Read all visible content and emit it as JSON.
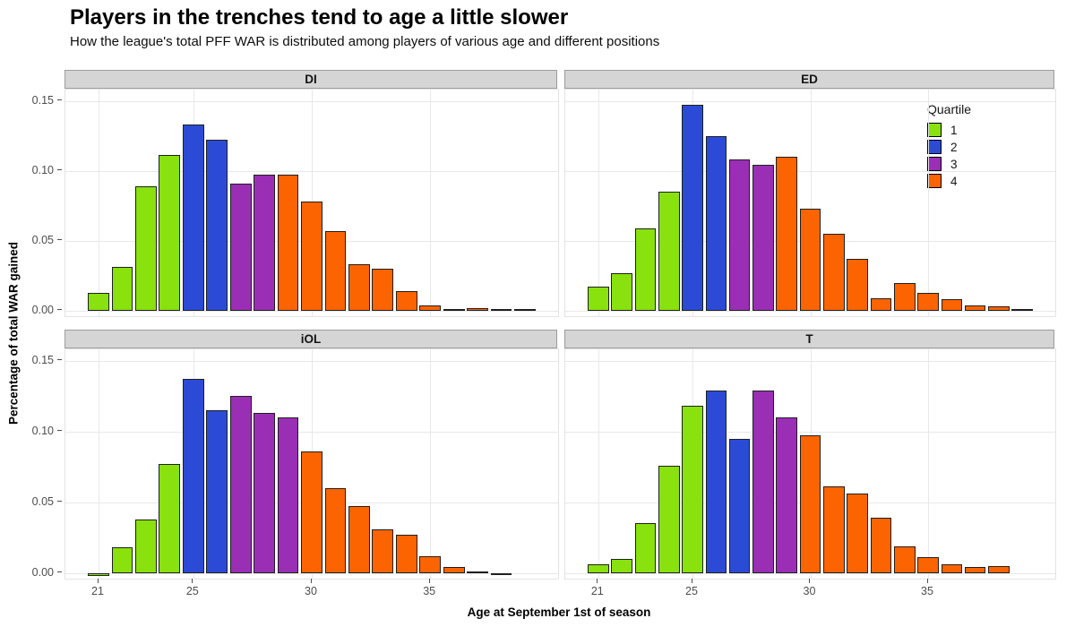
{
  "chart_data": {
    "type": "bar",
    "title": "Players in the trenches tend to age a little slower",
    "subtitle": "How the league's total PFF WAR is distributed among players of various age and different positions",
    "xlabel": "Age at September 1st of season",
    "ylabel": "Percentage of total WAR gained",
    "facet_layout": "2x2 grid, facets DI, ED, iOL, T",
    "x_ticks": [
      {
        "value": 21,
        "label": "21"
      },
      {
        "value": 25,
        "label": "25"
      },
      {
        "value": 30,
        "label": "30"
      },
      {
        "value": 35,
        "label": "35"
      }
    ],
    "y_ticks": [
      {
        "value": 0,
        "label": "0.00"
      },
      {
        "value": 0.05,
        "label": "0.05"
      },
      {
        "value": 0.1,
        "label": "0.10"
      },
      {
        "value": 0.15,
        "label": "0.15"
      }
    ],
    "x_range": [
      19.6,
      40.4
    ],
    "y_range": [
      -0.004,
      0.158
    ],
    "bar_width": 0.9,
    "grid": {
      "major_color": "#E8E8E8",
      "background": "#FFFFFF",
      "minor": "off"
    },
    "legend": {
      "title": "Quartile",
      "position": "inside top-right of ED panel",
      "entries": [
        {
          "label": "1",
          "color": "#89E10D"
        },
        {
          "label": "2",
          "color": "#2B4BD7"
        },
        {
          "label": "3",
          "color": "#9A2FB5"
        },
        {
          "label": "4",
          "color": "#FB6400"
        }
      ]
    },
    "facets": [
      {
        "label": "DI",
        "ages": [
          21,
          22,
          23,
          24,
          25,
          26,
          27,
          28,
          29,
          30,
          31,
          32,
          33,
          34,
          35,
          36,
          37,
          38,
          39
        ],
        "values": [
          0.013,
          0.031,
          0.089,
          0.111,
          0.133,
          0.122,
          0.091,
          0.097,
          0.097,
          0.078,
          0.057,
          0.033,
          0.03,
          0.014,
          0.004,
          0.001,
          0.002,
          0.001,
          0.0005
        ],
        "quartile": [
          1,
          1,
          1,
          1,
          2,
          2,
          3,
          3,
          4,
          4,
          4,
          4,
          4,
          4,
          4,
          4,
          4,
          4,
          4
        ]
      },
      {
        "label": "ED",
        "ages": [
          21,
          22,
          23,
          24,
          25,
          26,
          27,
          28,
          29,
          30,
          31,
          32,
          33,
          34,
          35,
          36,
          37,
          38,
          39
        ],
        "values": [
          0.017,
          0.027,
          0.059,
          0.085,
          0.147,
          0.125,
          0.108,
          0.104,
          0.11,
          0.073,
          0.055,
          0.037,
          0.009,
          0.02,
          0.013,
          0.008,
          0.004,
          0.003,
          0.0005
        ],
        "quartile": [
          1,
          1,
          1,
          1,
          2,
          2,
          3,
          3,
          4,
          4,
          4,
          4,
          4,
          4,
          4,
          4,
          4,
          4,
          4
        ]
      },
      {
        "label": "iOL",
        "ages": [
          21,
          22,
          23,
          24,
          25,
          26,
          27,
          28,
          29,
          30,
          31,
          32,
          33,
          34,
          35,
          36,
          37,
          38
        ],
        "values": [
          -0.002,
          0.018,
          0.038,
          0.077,
          0.137,
          0.115,
          0.125,
          0.113,
          0.11,
          0.086,
          0.06,
          0.047,
          0.031,
          0.027,
          0.012,
          0.004,
          0.0005,
          -0.001
        ],
        "quartile": [
          1,
          1,
          1,
          1,
          2,
          2,
          3,
          3,
          3,
          4,
          4,
          4,
          4,
          4,
          4,
          4,
          4,
          4
        ]
      },
      {
        "label": "T",
        "ages": [
          21,
          22,
          23,
          24,
          25,
          26,
          27,
          28,
          29,
          30,
          31,
          32,
          33,
          34,
          35,
          36,
          37,
          38
        ],
        "values": [
          0.006,
          0.01,
          0.035,
          0.076,
          0.118,
          0.129,
          0.095,
          0.129,
          0.11,
          0.097,
          0.061,
          0.056,
          0.039,
          0.019,
          0.011,
          0.006,
          0.004,
          0.005
        ],
        "quartile": [
          1,
          1,
          1,
          1,
          1,
          2,
          2,
          3,
          3,
          4,
          4,
          4,
          4,
          4,
          4,
          4,
          4,
          4
        ]
      }
    ]
  }
}
